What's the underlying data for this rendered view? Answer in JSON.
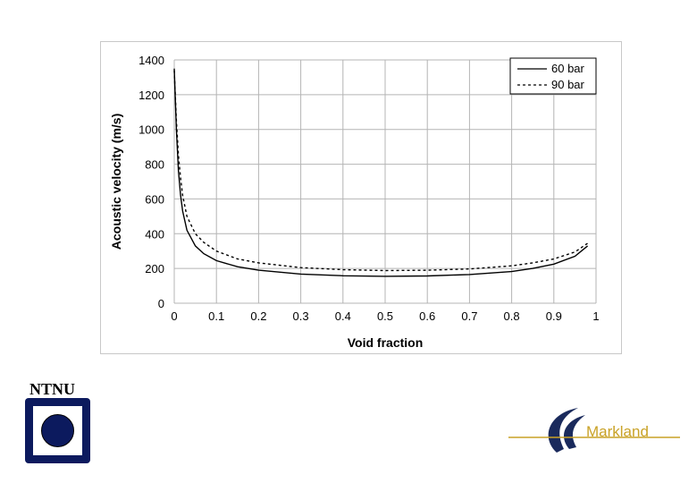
{
  "chart_data": {
    "type": "line",
    "xlabel": "Void fraction",
    "ylabel": "Acoustic velocity (m/s)",
    "xlim": [
      0,
      1
    ],
    "ylim": [
      0,
      1400
    ],
    "x_ticks": [
      "0",
      "0.1",
      "0.2",
      "0.3",
      "0.4",
      "0.5",
      "0.6",
      "0.7",
      "0.8",
      "0.9",
      "1"
    ],
    "y_ticks": [
      "0",
      "200",
      "400",
      "600",
      "800",
      "1000",
      "1200",
      "1400"
    ],
    "grid": true,
    "legend_position": "top-right",
    "series": [
      {
        "name": "60 bar",
        "style": "solid",
        "x": [
          0,
          0.005,
          0.01,
          0.015,
          0.02,
          0.03,
          0.05,
          0.07,
          0.1,
          0.15,
          0.2,
          0.3,
          0.4,
          0.5,
          0.6,
          0.7,
          0.8,
          0.85,
          0.9,
          0.95,
          0.98
        ],
        "y": [
          1350,
          1000,
          760,
          620,
          530,
          420,
          330,
          285,
          245,
          210,
          190,
          168,
          158,
          155,
          157,
          165,
          182,
          200,
          225,
          270,
          330
        ]
      },
      {
        "name": "90 bar",
        "style": "dashed",
        "x": [
          0,
          0.005,
          0.01,
          0.015,
          0.02,
          0.03,
          0.05,
          0.07,
          0.1,
          0.15,
          0.2,
          0.3,
          0.4,
          0.5,
          0.6,
          0.7,
          0.8,
          0.85,
          0.9,
          0.95,
          0.98
        ],
        "y": [
          1340,
          1050,
          850,
          720,
          620,
          500,
          400,
          350,
          300,
          255,
          232,
          205,
          193,
          188,
          190,
          197,
          215,
          232,
          255,
          295,
          345
        ]
      }
    ]
  },
  "logos": {
    "ntnu_text": "NTNU",
    "markland_text": "Markland"
  },
  "colors": {
    "ntnu_blue": "#0c1a5e",
    "markland_navy": "#1a2a5c",
    "markland_gold": "#c9a227",
    "grid": "#b4b4b4"
  }
}
